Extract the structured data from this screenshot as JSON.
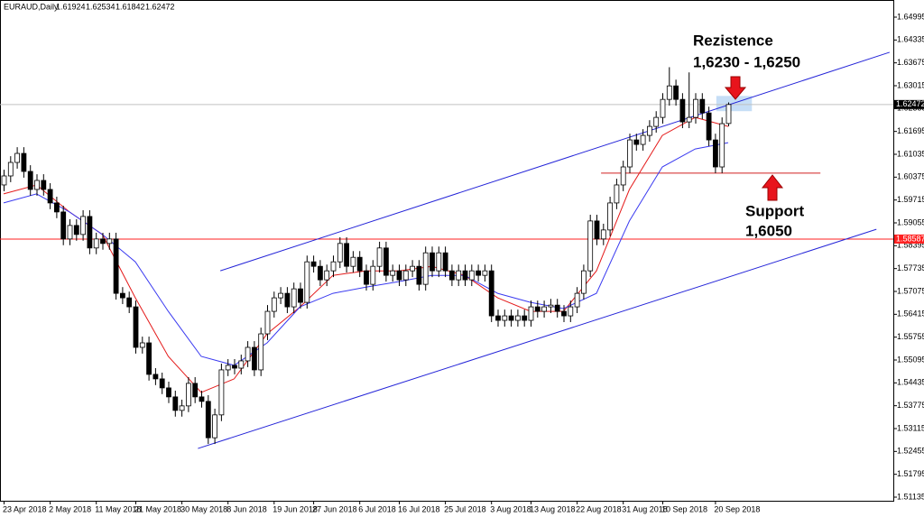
{
  "chart_data": {
    "type": "candlestick",
    "symbol": "EURAUD,Daily",
    "categories": [
      "23 Apr 2018",
      null,
      null,
      null,
      null,
      null,
      null,
      "2 May 2018",
      null,
      null,
      null,
      null,
      null,
      null,
      "11 May 2018",
      null,
      null,
      null,
      null,
      null,
      "21 May 2018",
      null,
      null,
      null,
      null,
      null,
      null,
      "30 May 2018",
      null,
      null,
      null,
      null,
      null,
      null,
      "8 Jun 2018",
      null,
      null,
      null,
      null,
      null,
      null,
      "19 Jun 2018",
      null,
      null,
      null,
      null,
      null,
      "27 Jun 2018",
      null,
      null,
      null,
      null,
      null,
      null,
      "6 Jul 2018",
      null,
      null,
      null,
      null,
      null,
      "16 Jul 2018",
      null,
      null,
      null,
      null,
      null,
      null,
      "25 Jul 2018",
      null,
      null,
      null,
      null,
      null,
      null,
      "3 Aug 2018",
      null,
      null,
      null,
      null,
      null,
      "13 Aug 2018",
      null,
      null,
      null,
      null,
      null,
      null,
      "22 Aug 2018",
      null,
      null,
      null,
      null,
      null,
      null,
      "31 Aug 2018",
      null,
      null,
      null,
      null,
      null,
      "10 Sep 2018",
      null,
      null,
      null,
      null,
      null,
      null,
      null,
      "20 Sep 2018",
      null,
      null
    ],
    "open": [
      1.6015,
      1.6041,
      1.608,
      1.6106,
      1.6054,
      1.6002,
      1.6028,
      1.6002,
      1.5963,
      1.5937,
      1.5859,
      1.5898,
      1.5872,
      1.5924,
      1.5833,
      1.5859,
      1.5846,
      1.5859,
      1.5702,
      1.5689,
      1.5663,
      1.5546,
      1.5559,
      1.5468,
      1.5455,
      1.5429,
      1.5403,
      1.5364,
      1.5377,
      1.5442,
      1.5403,
      1.539,
      1.5285,
      1.5351,
      1.5481,
      1.5494,
      1.5486,
      1.5507,
      1.5546,
      1.5481,
      1.5585,
      1.565,
      1.5689,
      1.5702,
      1.5663,
      1.5715,
      1.5676,
      1.5793,
      1.578,
      1.5741,
      1.5767,
      1.5793,
      1.5846,
      1.578,
      1.5806,
      1.5767,
      1.5728,
      1.578,
      1.5833,
      1.5754,
      1.5767,
      1.5741,
      1.5767,
      1.578,
      1.5728,
      1.5819,
      1.5767,
      1.5819,
      1.5767,
      1.5741,
      1.5767,
      1.5741,
      1.5767,
      1.5754,
      1.5767,
      1.5637,
      1.5624,
      1.5637,
      1.5624,
      1.5637,
      1.5624,
      1.5663,
      1.565,
      1.5663,
      1.5668,
      1.565,
      1.5637,
      1.5663,
      1.5702,
      1.5767,
      1.5911,
      1.5859,
      1.5885,
      1.5963,
      1.6015,
      1.6067,
      1.6145,
      1.6132,
      1.6158,
      1.6184,
      1.621,
      1.6262,
      1.6301,
      1.6262,
      1.6197,
      1.621,
      1.6262,
      1.6223,
      1.6145,
      1.6067,
      1.61924
    ],
    "high": [
      1.6059,
      1.6098,
      1.6124,
      1.6124,
      1.6072,
      1.6046,
      1.6046,
      1.602,
      1.5981,
      1.5955,
      1.5916,
      1.5916,
      1.5942,
      1.5942,
      1.5877,
      1.5877,
      1.5877,
      1.5877,
      1.572,
      1.5707,
      1.5681,
      1.5577,
      1.5577,
      1.5486,
      1.5473,
      1.5447,
      1.5421,
      1.5395,
      1.546,
      1.546,
      1.5421,
      1.5408,
      1.5369,
      1.5499,
      1.5512,
      1.5512,
      1.5525,
      1.5564,
      1.5564,
      1.5603,
      1.5668,
      1.5707,
      1.572,
      1.572,
      1.5733,
      1.5733,
      1.5811,
      1.5811,
      1.5798,
      1.5785,
      1.5811,
      1.5864,
      1.5864,
      1.5824,
      1.5824,
      1.5785,
      1.5798,
      1.5851,
      1.5851,
      1.5785,
      1.5785,
      1.5785,
      1.5798,
      1.5798,
      1.5837,
      1.5837,
      1.5837,
      1.5837,
      1.5785,
      1.5785,
      1.5785,
      1.5785,
      1.5785,
      1.5785,
      1.5785,
      1.5655,
      1.5655,
      1.5655,
      1.5655,
      1.5655,
      1.5681,
      1.5681,
      1.5681,
      1.5686,
      1.5686,
      1.5668,
      1.5681,
      1.572,
      1.5785,
      1.5929,
      1.5929,
      1.5903,
      1.5981,
      1.6033,
      1.6085,
      1.6163,
      1.6163,
      1.6176,
      1.6202,
      1.6228,
      1.628,
      1.6355,
      1.6319,
      1.628,
      1.634,
      1.628,
      1.628,
      1.6241,
      1.6163,
      1.621,
      1.62534
    ],
    "low": [
      1.5997,
      1.6023,
      1.6062,
      1.6036,
      1.5984,
      1.5984,
      1.5984,
      1.5945,
      1.5919,
      1.5841,
      1.5841,
      1.5854,
      1.5854,
      1.5815,
      1.5815,
      1.5828,
      1.5828,
      1.5684,
      1.5671,
      1.5645,
      1.5528,
      1.5528,
      1.545,
      1.5437,
      1.5411,
      1.5385,
      1.5346,
      1.5346,
      1.5359,
      1.5385,
      1.5372,
      1.5267,
      1.5267,
      1.5333,
      1.5463,
      1.5468,
      1.5468,
      1.5489,
      1.5463,
      1.5463,
      1.5567,
      1.5632,
      1.5671,
      1.5645,
      1.5645,
      1.5658,
      1.5658,
      1.5762,
      1.5723,
      1.5723,
      1.5749,
      1.5775,
      1.5762,
      1.5762,
      1.5749,
      1.571,
      1.571,
      1.5762,
      1.5736,
      1.5736,
      1.5723,
      1.5723,
      1.5749,
      1.571,
      1.571,
      1.5749,
      1.5749,
      1.5749,
      1.5723,
      1.5723,
      1.5723,
      1.5723,
      1.5736,
      1.5736,
      1.5619,
      1.5606,
      1.5606,
      1.5606,
      1.5606,
      1.5606,
      1.5606,
      1.5632,
      1.5632,
      1.5645,
      1.5632,
      1.5619,
      1.5619,
      1.5645,
      1.5684,
      1.5749,
      1.5841,
      1.5841,
      1.5867,
      1.5945,
      1.5997,
      1.6049,
      1.6114,
      1.6114,
      1.614,
      1.6166,
      1.6192,
      1.6244,
      1.6244,
      1.6179,
      1.6179,
      1.6192,
      1.6205,
      1.6127,
      1.6049,
      1.6049,
      1.61842
    ],
    "close": [
      1.6041,
      1.608,
      1.6106,
      1.6054,
      1.6002,
      1.6028,
      1.6002,
      1.5963,
      1.5937,
      1.5859,
      1.5898,
      1.5872,
      1.5924,
      1.5833,
      1.5859,
      1.5846,
      1.5859,
      1.5702,
      1.5689,
      1.5663,
      1.5546,
      1.5559,
      1.5468,
      1.5455,
      1.5429,
      1.5403,
      1.5364,
      1.5377,
      1.5442,
      1.5403,
      1.539,
      1.5285,
      1.5351,
      1.5481,
      1.5494,
      1.5486,
      1.5507,
      1.5546,
      1.5481,
      1.5585,
      1.565,
      1.5689,
      1.5702,
      1.5663,
      1.5715,
      1.5676,
      1.5793,
      1.578,
      1.5741,
      1.5767,
      1.5793,
      1.5846,
      1.578,
      1.5806,
      1.5767,
      1.5728,
      1.578,
      1.5833,
      1.5754,
      1.5767,
      1.5741,
      1.5767,
      1.578,
      1.5728,
      1.5819,
      1.5767,
      1.5819,
      1.5767,
      1.5741,
      1.5767,
      1.5741,
      1.5767,
      1.5754,
      1.5767,
      1.5637,
      1.5624,
      1.5637,
      1.5624,
      1.5637,
      1.5624,
      1.5663,
      1.565,
      1.5663,
      1.5668,
      1.565,
      1.5637,
      1.5663,
      1.5702,
      1.5767,
      1.5911,
      1.5859,
      1.5885,
      1.5963,
      1.6015,
      1.6067,
      1.6145,
      1.6132,
      1.6158,
      1.6184,
      1.621,
      1.6262,
      1.6301,
      1.6262,
      1.6197,
      1.621,
      1.6262,
      1.6223,
      1.6145,
      1.6067,
      1.6192,
      1.62472
    ],
    "series": [
      {
        "color": "#e41a1a",
        "x": [
          0,
          5,
          10,
          15,
          20,
          25,
          30,
          35,
          40,
          45,
          50,
          55,
          60,
          65,
          70,
          75,
          80,
          85,
          90,
          95,
          100,
          105,
          110
        ],
        "values": [
          1.5989,
          1.6015,
          1.5937,
          1.5872,
          1.5689,
          1.552,
          1.5416,
          1.5455,
          1.5585,
          1.5663,
          1.5754,
          1.5767,
          1.5767,
          1.578,
          1.5754,
          1.5689,
          1.565,
          1.565,
          1.5767,
          1.6002,
          1.6158,
          1.621,
          1.6184
        ]
      },
      {
        "color": "#3a3af0",
        "x": [
          0,
          5,
          10,
          15,
          20,
          25,
          30,
          35,
          40,
          45,
          50,
          55,
          60,
          65,
          70,
          75,
          80,
          85,
          90,
          95,
          100,
          105,
          110
        ],
        "values": [
          1.5963,
          1.5989,
          1.5937,
          1.5872,
          1.5793,
          1.565,
          1.552,
          1.5494,
          1.5559,
          1.5663,
          1.5702,
          1.572,
          1.5736,
          1.5754,
          1.5754,
          1.5702,
          1.5676,
          1.5658,
          1.5702,
          1.5911,
          1.6067,
          1.6119,
          1.6137
        ]
      }
    ],
    "ylim": [
      1.51135,
      1.64995
    ],
    "yticks": [
      1.64995,
      1.64335,
      1.63675,
      1.63015,
      1.62355,
      1.61695,
      1.61035,
      1.60375,
      1.59715,
      1.59055,
      1.58395,
      1.57735,
      1.57075,
      1.56415,
      1.55755,
      1.55095,
      1.54435,
      1.53775,
      1.53115,
      1.52455,
      1.51795,
      1.51135
    ],
    "trendlines": [
      {
        "color": "#2424d8",
        "x": [
          32.9,
          134.5
        ],
        "y": [
          1.5767,
          1.6398
        ]
      },
      {
        "color": "#2424d8",
        "x": [
          29.5,
          132.5
        ],
        "y": [
          1.5254,
          1.5887
        ]
      },
      {
        "color": "#d02020",
        "x": [
          90.7,
          124
        ],
        "y": [
          1.6049,
          1.6049
        ]
      }
    ],
    "levels": [
      {
        "value": 1.58587,
        "color": "#ff2020"
      }
    ],
    "zone": {
      "x": [
        108.2,
        113.6
      ],
      "y": [
        1.6228,
        1.6272
      ]
    },
    "annotations": [
      "Rezistence",
      "1,6230 - 1,6250",
      "Support",
      "1,6050"
    ]
  }
}
